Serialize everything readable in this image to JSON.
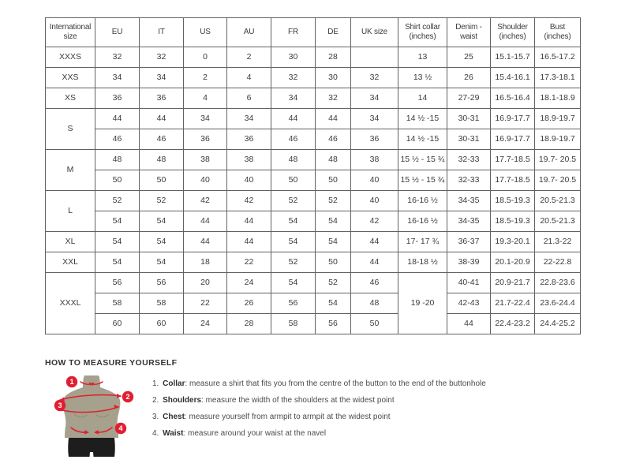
{
  "table": {
    "headers": [
      "International size",
      "EU",
      "IT",
      "US",
      "AU",
      "FR",
      "DE",
      "UK size",
      "Shirt collar (inches)",
      "Denim - waist",
      "Shoulder (inches)",
      "Bust (inches)"
    ],
    "rows": [
      {
        "size": "XXXS",
        "size_span": 1,
        "eu": "32",
        "it": "32",
        "us": "0",
        "au": "2",
        "fr": "30",
        "de": "28",
        "uk": "",
        "collar": "13",
        "collar_span": 1,
        "denim": "25",
        "shoulder": "15.1-15.7",
        "bust": "16.5-17.2"
      },
      {
        "size": "XXS",
        "size_span": 1,
        "eu": "34",
        "it": "34",
        "us": "2",
        "au": "4",
        "fr": "32",
        "de": "30",
        "uk": "32",
        "collar": "13 ½",
        "collar_span": 1,
        "denim": "26",
        "shoulder": "15.4-16.1",
        "bust": "17.3-18.1"
      },
      {
        "size": "XS",
        "size_span": 1,
        "eu": "36",
        "it": "36",
        "us": "4",
        "au": "6",
        "fr": "34",
        "de": "32",
        "uk": "34",
        "collar": "14",
        "collar_span": 1,
        "denim": "27-29",
        "shoulder": "16.5-16.4",
        "bust": "18.1-18.9"
      },
      {
        "size": "S",
        "size_span": 2,
        "eu": "44",
        "it": "44",
        "us": "34",
        "au": "34",
        "fr": "44",
        "de": "44",
        "uk": "34",
        "collar": "14 ½ -15",
        "collar_span": 1,
        "denim": "30-31",
        "shoulder": "16.9-17.7",
        "bust": "18.9-19.7"
      },
      {
        "size": null,
        "eu": "46",
        "it": "46",
        "us": "36",
        "au": "36",
        "fr": "46",
        "de": "46",
        "uk": "36",
        "collar": "14 ½ -15",
        "collar_span": 1,
        "denim": "30-31",
        "shoulder": "16.9-17.7",
        "bust": "18.9-19.7"
      },
      {
        "size": "M",
        "size_span": 2,
        "eu": "48",
        "it": "48",
        "us": "38",
        "au": "38",
        "fr": "48",
        "de": "48",
        "uk": "38",
        "collar": "15 ½ - 15 ¾",
        "collar_span": 1,
        "denim": "32-33",
        "shoulder": "17.7-18.5",
        "bust": "19.7- 20.5"
      },
      {
        "size": null,
        "eu": "50",
        "it": "50",
        "us": "40",
        "au": "40",
        "fr": "50",
        "de": "50",
        "uk": "40",
        "collar": "15 ½ - 15 ¾",
        "collar_span": 1,
        "denim": "32-33",
        "shoulder": "17.7-18.5",
        "bust": "19.7- 20.5"
      },
      {
        "size": "L",
        "size_span": 2,
        "eu": "52",
        "it": "52",
        "us": "42",
        "au": "42",
        "fr": "52",
        "de": "52",
        "uk": "40",
        "collar": "16-16 ½",
        "collar_span": 1,
        "denim": "34-35",
        "shoulder": "18.5-19.3",
        "bust": "20.5-21.3"
      },
      {
        "size": null,
        "eu": "54",
        "it": "54",
        "us": "44",
        "au": "44",
        "fr": "54",
        "de": "54",
        "uk": "42",
        "collar": "16-16 ½",
        "collar_span": 1,
        "denim": "34-35",
        "shoulder": "18.5-19.3",
        "bust": "20.5-21.3"
      },
      {
        "size": "XL",
        "size_span": 1,
        "eu": "54",
        "it": "54",
        "us": "44",
        "au": "44",
        "fr": "54",
        "de": "54",
        "uk": "44",
        "collar": "17- 17 ¾",
        "collar_span": 1,
        "denim": "36-37",
        "shoulder": "19.3-20.1",
        "bust": "21.3-22"
      },
      {
        "size": "XXL",
        "size_span": 1,
        "eu": "54",
        "it": "54",
        "us": "18",
        "au": "22",
        "fr": "52",
        "de": "50",
        "uk": "44",
        "collar": "18-18 ½",
        "collar_span": 1,
        "denim": "38-39",
        "shoulder": "20.1-20.9",
        "bust": "22-22.8"
      },
      {
        "size": "XXXL",
        "size_span": 3,
        "eu": "56",
        "it": "56",
        "us": "20",
        "au": "24",
        "fr": "54",
        "de": "52",
        "uk": "46",
        "collar": "19 -20",
        "collar_span": 3,
        "denim": "40-41",
        "shoulder": "20.9-21.7",
        "bust": "22.8-23.6"
      },
      {
        "size": null,
        "eu": "58",
        "it": "58",
        "us": "22",
        "au": "26",
        "fr": "56",
        "de": "54",
        "uk": "48",
        "collar": null,
        "denim": "42-43",
        "shoulder": "21.7-22.4",
        "bust": "23.6-24.4"
      },
      {
        "size": null,
        "eu": "60",
        "it": "60",
        "us": "24",
        "au": "28",
        "fr": "58",
        "de": "56",
        "uk": "50",
        "collar": null,
        "denim": "44",
        "shoulder": "22.4-23.2",
        "bust": "24.4-25.2"
      }
    ]
  },
  "measure": {
    "title": "HOW TO MEASURE YOURSELF",
    "steps": [
      {
        "num": "1.",
        "label": "Collar",
        "rest": ": measure a shirt that fits you from the centre of the button to the end of the buttonhole"
      },
      {
        "num": "2.",
        "label": "Shoulders",
        "rest": ": measure the width of the shoulders at the widest point"
      },
      {
        "num": "3.",
        "label": "Chest",
        "rest": ": measure yourself from armpit to armpit at the widest point"
      },
      {
        "num": "4.",
        "label": "Waist",
        "rest": ": measure around your waist at the navel"
      }
    ],
    "figure": {
      "markers": [
        "1",
        "2",
        "3",
        "4"
      ],
      "colors": {
        "accent_red": "#e11e32",
        "mannequin": "#a5a18c",
        "mannequin_shade": "#8e8a74",
        "shorts": "#1d1d1d"
      }
    }
  }
}
